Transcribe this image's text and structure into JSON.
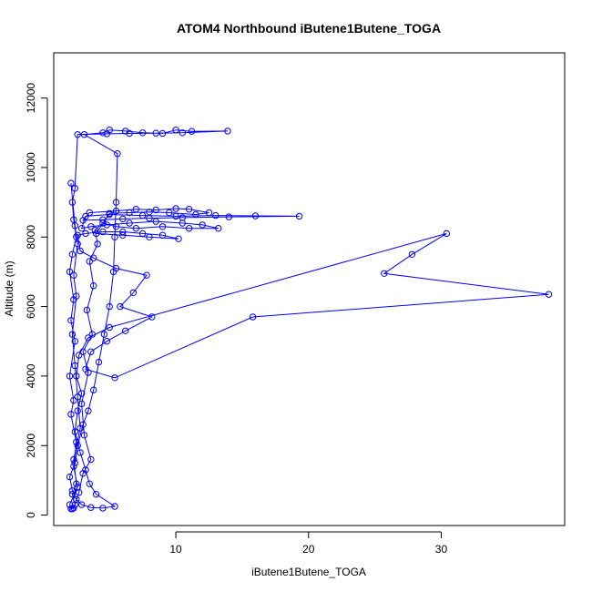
{
  "chart_data": {
    "type": "line",
    "title": "ATOM4 Northbound iButene1Butene_TOGA",
    "xlabel": "iButene1Butene_TOGA",
    "ylabel": "Altitude (m)",
    "xlim": [
      0.8,
      39.3
    ],
    "ylim": [
      -300,
      13300
    ],
    "x_ticks": [
      10,
      20,
      30
    ],
    "y_ticks": [
      0,
      2000,
      4000,
      6000,
      8000,
      10000,
      12000
    ],
    "grid": false,
    "legend": "none",
    "marker": "open-circle",
    "series": [
      {
        "color": "#0000ff",
        "points": [
          [
            2.1,
            9550
          ],
          [
            2.4,
            8330
          ],
          [
            2.6,
            7800
          ],
          [
            2.3,
            6900
          ],
          [
            2.5,
            6300
          ],
          [
            2.2,
            5200
          ],
          [
            2.4,
            4300
          ],
          [
            2.6,
            3400
          ],
          [
            2.8,
            2500
          ],
          [
            2.3,
            1600
          ],
          [
            2.5,
            900
          ],
          [
            2.2,
            600
          ],
          [
            2.4,
            300
          ],
          [
            2.1,
            180
          ],
          [
            2.3,
            200
          ],
          [
            2.7,
            650
          ],
          [
            3.0,
            1200
          ],
          [
            3.6,
            1600
          ],
          [
            3.1,
            2300
          ],
          [
            2.9,
            3200
          ],
          [
            3.4,
            4100
          ],
          [
            3.0,
            4700
          ],
          [
            3.7,
            5200
          ],
          [
            3.3,
            5900
          ],
          [
            3.8,
            6600
          ],
          [
            3.5,
            7300
          ],
          [
            4.1,
            7800
          ],
          [
            3.9,
            8200
          ],
          [
            4.5,
            8400
          ],
          [
            5.5,
            8300
          ],
          [
            7.0,
            8250
          ],
          [
            9.0,
            8300
          ],
          [
            11.0,
            8250
          ],
          [
            13.2,
            8250
          ],
          [
            12.0,
            8350
          ],
          [
            10.5,
            8400
          ],
          [
            8.5,
            8450
          ],
          [
            6.5,
            8400
          ],
          [
            4.8,
            8350
          ],
          [
            3.6,
            8300
          ],
          [
            2.9,
            8250
          ],
          [
            3.2,
            8600
          ],
          [
            5.0,
            8650
          ],
          [
            7.5,
            8620
          ],
          [
            10.0,
            8600
          ],
          [
            13.0,
            8620
          ],
          [
            16.0,
            8610
          ],
          [
            19.3,
            8600
          ],
          [
            14.0,
            8580
          ],
          [
            10.5,
            8560
          ],
          [
            8.0,
            8540
          ],
          [
            6.0,
            8520
          ],
          [
            4.5,
            8500
          ],
          [
            3.0,
            8480
          ],
          [
            3.5,
            8700
          ],
          [
            5.5,
            8750
          ],
          [
            7.0,
            8800
          ],
          [
            8.5,
            8780
          ],
          [
            10.0,
            8820
          ],
          [
            11.0,
            8800
          ],
          [
            12.5,
            8700
          ],
          [
            11.5,
            8650
          ],
          [
            9.5,
            8700
          ],
          [
            8.0,
            8720
          ],
          [
            6.5,
            8700
          ],
          [
            5.0,
            8680
          ],
          [
            4.0,
            8100
          ],
          [
            6.0,
            8050
          ],
          [
            8.0,
            8000
          ],
          [
            10.2,
            7950
          ],
          [
            9.0,
            8050
          ],
          [
            7.5,
            8100
          ],
          [
            6.0,
            8150
          ],
          [
            4.5,
            8150
          ],
          [
            3.2,
            8100
          ],
          [
            2.6,
            8050
          ],
          [
            2.8,
            7600
          ],
          [
            3.8,
            7400
          ],
          [
            5.5,
            7100
          ],
          [
            7.8,
            6900
          ],
          [
            6.8,
            6400
          ],
          [
            5.8,
            6000
          ],
          [
            8.2,
            5700
          ],
          [
            6.2,
            5300
          ],
          [
            4.8,
            5000
          ],
          [
            3.6,
            4700
          ],
          [
            3.2,
            4200
          ],
          [
            5.4,
            3950
          ],
          [
            15.8,
            5700
          ],
          [
            38.1,
            6350
          ],
          [
            25.7,
            6950
          ],
          [
            27.8,
            7500
          ],
          [
            30.4,
            8100
          ],
          [
            5.0,
            5400
          ],
          [
            3.4,
            5100
          ],
          [
            2.7,
            4600
          ],
          [
            2.5,
            4000
          ],
          [
            2.9,
            3500
          ],
          [
            2.6,
            3000
          ],
          [
            2.4,
            2400
          ],
          [
            2.8,
            1800
          ],
          [
            3.2,
            1300
          ],
          [
            3.5,
            900
          ],
          [
            4.0,
            600
          ],
          [
            5.4,
            250
          ],
          [
            4.5,
            200
          ],
          [
            3.6,
            220
          ],
          [
            2.9,
            300
          ],
          [
            2.5,
            450
          ],
          [
            2.2,
            700
          ],
          [
            2.0,
            1100
          ],
          [
            2.4,
            1500
          ],
          [
            2.6,
            2000
          ],
          [
            3.0,
            2600
          ],
          [
            3.4,
            3000
          ],
          [
            3.8,
            3600
          ],
          [
            4.2,
            4400
          ],
          [
            4.6,
            5200
          ],
          [
            5.0,
            6000
          ],
          [
            5.3,
            7000
          ],
          [
            5.4,
            8000
          ],
          [
            5.5,
            9000
          ],
          [
            5.6,
            10400
          ],
          [
            3.1,
            10950
          ],
          [
            4.5,
            11000
          ],
          [
            5.0,
            11080
          ],
          [
            6.2,
            11050
          ],
          [
            7.5,
            11000
          ],
          [
            9.0,
            10980
          ],
          [
            10.0,
            11080
          ],
          [
            11.2,
            11040
          ],
          [
            13.9,
            11050
          ],
          [
            10.5,
            11000
          ],
          [
            8.5,
            10990
          ],
          [
            6.5,
            10980
          ],
          [
            4.8,
            10970
          ],
          [
            2.6,
            10950
          ],
          [
            2.4,
            9400
          ],
          [
            2.2,
            9000
          ],
          [
            2.3,
            8500
          ],
          [
            2.5,
            8000
          ],
          [
            2.2,
            7500
          ],
          [
            2.0,
            7000
          ],
          [
            2.3,
            6200
          ],
          [
            2.1,
            5600
          ],
          [
            2.4,
            5000
          ],
          [
            2.0,
            4000
          ],
          [
            2.3,
            3300
          ],
          [
            2.1,
            2900
          ],
          [
            2.5,
            2100
          ],
          [
            2.3,
            1400
          ],
          [
            2.6,
            800
          ],
          [
            2.0,
            300
          ],
          [
            2.2,
            180
          ]
        ]
      }
    ]
  }
}
